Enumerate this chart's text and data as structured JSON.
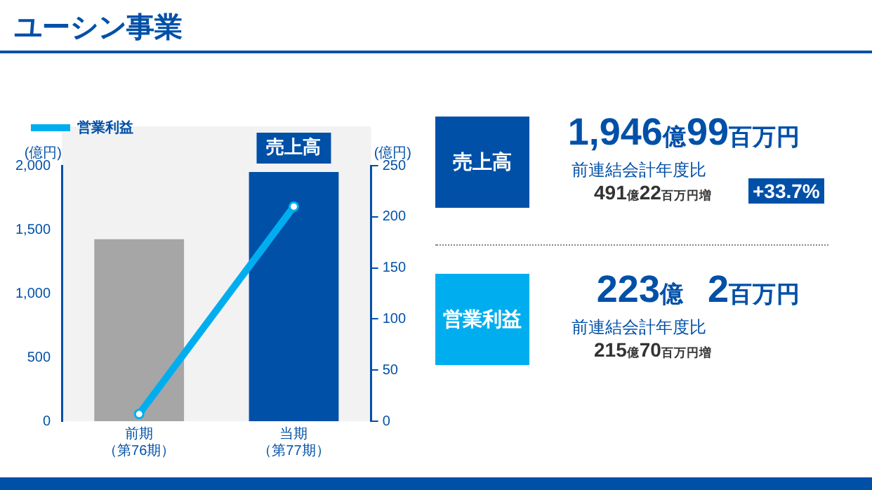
{
  "chart_data": [
    {
      "type": "bar",
      "title": "ユーシン事業",
      "categories": [
        "前期（第76期）",
        "当期（第77期）"
      ],
      "series": [
        {
          "name": "売上高",
          "type": "bar",
          "colors": [
            "#a6a6a6",
            "#0050a8"
          ],
          "values": [
            1425,
            1950
          ]
        },
        {
          "name": "営業利益",
          "type": "line",
          "axis": "y2",
          "color": "#00aeef",
          "values": [
            7,
            210
          ]
        }
      ],
      "ylabel": "(億円)",
      "y2label": "(億円)",
      "ylim": [
        0,
        2000
      ],
      "yticks": [
        0,
        {
          "value": 500,
          "label": "500"
        },
        {
          "value": 1000,
          "label": "1,000"
        },
        {
          "value": 1500,
          "label": "1,500"
        },
        {
          "value": 2000,
          "label": "2,000"
        }
      ],
      "y2lim": [
        0,
        250
      ],
      "y2ticks": [
        0,
        50,
        100,
        150,
        200,
        250
      ],
      "legend": "top left",
      "marker": "circle",
      "grid": false
    },
    {
      "type": "other",
      "annotations": [
        "売上高",
        "1,946億99百万円",
        "前連結会計年度比",
        "491億22百万円増",
        "+33.7%",
        "営業利益",
        "223億　2百万円",
        "前連結会計年度比",
        "215億70百万円増"
      ]
    }
  ]
}
